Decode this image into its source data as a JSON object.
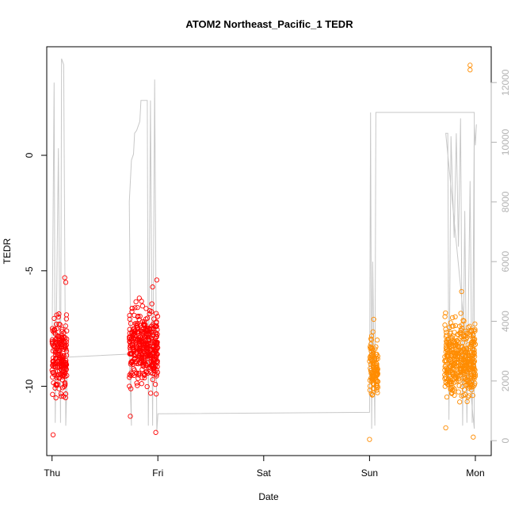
{
  "chart_data": {
    "type": "scatter",
    "title": "ATOM2 Northeast_Pacific_1 TEDR",
    "xlabel": "Date",
    "ylabel": "TEDR",
    "x_ticks": [
      "Thu",
      "Fri",
      "Sat",
      "Sun",
      "Mon"
    ],
    "x_range_days": [
      -0.05,
      4.15
    ],
    "ylim": [
      -13.0,
      4.7
    ],
    "y_ticks": [
      -10,
      -5,
      0
    ],
    "y2lim": [
      -500,
      13200
    ],
    "y2_ticks": [
      0,
      2000,
      4000,
      6000,
      8000,
      10000,
      12000
    ],
    "grid": false,
    "legend": "none",
    "colors": {
      "series_1": "#ff0000",
      "series_2": "#ff8c00",
      "altitude_line": "#c8c8c8",
      "right_axis": "#b3b3b3"
    },
    "series": [
      {
        "clusters": [
          {
            "x_from": 0.0,
            "x_to": 0.14,
            "y_min": -11.2,
            "y_max": -6.3,
            "y_center": -8.7,
            "outliers": [
              [
                0.01,
                -12.1
              ],
              [
                0.12,
                -5.3
              ],
              [
                0.13,
                -5.5
              ]
            ]
          },
          {
            "x_from": 0.73,
            "x_to": 1.0,
            "y_min": -11.0,
            "y_max": -6.0,
            "y_center": -8.3,
            "outliers": [
              [
                0.74,
                -11.3
              ],
              [
                0.98,
                -12.0
              ],
              [
                0.99,
                -5.4
              ],
              [
                0.95,
                -5.7
              ]
            ]
          }
        ]
      },
      {
        "clusters": [
          {
            "x_from": 3.0,
            "x_to": 3.08,
            "y_min": -11.5,
            "y_max": -7.6,
            "y_center": -9.2,
            "outliers": [
              [
                3.0,
                -12.3
              ],
              [
                3.04,
                -7.1
              ]
            ]
          },
          {
            "x_from": 3.71,
            "x_to": 4.0,
            "y_min": -11.3,
            "y_max": -6.3,
            "y_center": -8.8,
            "outliers": [
              [
                3.72,
                -11.8
              ],
              [
                3.98,
                -12.2
              ],
              [
                3.87,
                -5.9
              ],
              [
                3.95,
                3.9
              ],
              [
                3.95,
                3.7
              ]
            ]
          }
        ]
      }
    ],
    "altitude_line": {
      "axis": "right",
      "points": [
        [
          0.0,
          3000
        ],
        [
          0.02,
          12000
        ],
        [
          0.03,
          600
        ],
        [
          0.06,
          9800
        ],
        [
          0.08,
          600
        ],
        [
          0.09,
          12800
        ],
        [
          0.11,
          12600
        ],
        [
          0.13,
          500
        ],
        [
          0.15,
          3100
        ],
        [
          0.15,
          2800
        ],
        [
          0.73,
          2900
        ],
        [
          0.75,
          500
        ],
        [
          0.73,
          8000
        ],
        [
          0.75,
          9400
        ],
        [
          0.77,
          9600
        ],
        [
          0.78,
          10300
        ],
        [
          0.8,
          10400
        ],
        [
          0.83,
          10700
        ],
        [
          0.84,
          11400
        ],
        [
          0.9,
          11400
        ],
        [
          0.91,
          500
        ],
        [
          0.93,
          11400
        ],
        [
          0.95,
          500
        ],
        [
          0.97,
          12100
        ],
        [
          0.99,
          300
        ],
        [
          1.0,
          900
        ],
        [
          1.0,
          900
        ],
        [
          3.0,
          950
        ],
        [
          3.01,
          11000
        ],
        [
          3.02,
          400
        ],
        [
          3.03,
          6000
        ],
        [
          3.05,
          500
        ],
        [
          3.06,
          11000
        ],
        [
          3.99,
          11000
        ],
        [
          3.99,
          400
        ],
        [
          3.72,
          10300
        ],
        [
          3.74,
          10300
        ],
        [
          3.75,
          700
        ],
        [
          3.77,
          10200
        ],
        [
          3.8,
          6800
        ],
        [
          3.82,
          10300
        ],
        [
          3.84,
          6500
        ],
        [
          3.86,
          10800
        ],
        [
          3.88,
          500
        ],
        [
          3.9,
          7700
        ],
        [
          3.92,
          600
        ],
        [
          3.95,
          8700
        ],
        [
          3.97,
          600
        ],
        [
          3.99,
          10600
        ],
        [
          4.0,
          9900
        ],
        [
          4.01,
          10600
        ]
      ]
    }
  }
}
